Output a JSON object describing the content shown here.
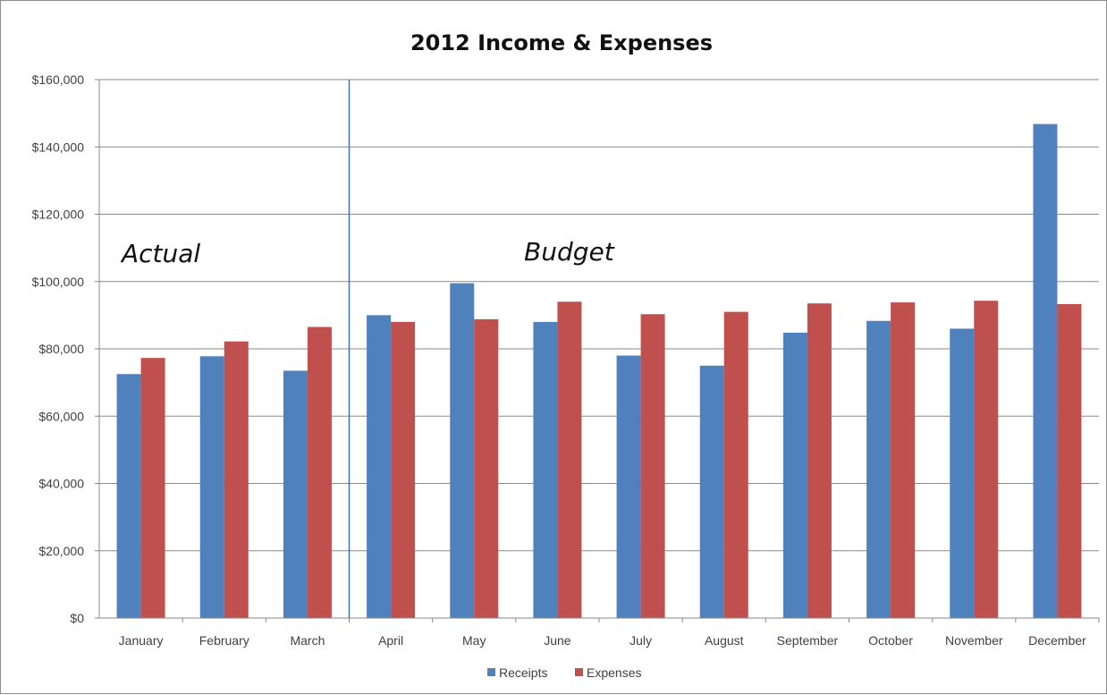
{
  "chart_data": {
    "type": "bar",
    "title": "2012 Income & Expenses",
    "categories": [
      "January",
      "February",
      "March",
      "April",
      "May",
      "June",
      "July",
      "August",
      "September",
      "October",
      "November",
      "December"
    ],
    "series": [
      {
        "name": "Receipts",
        "color": "#4f81bd",
        "values": [
          72500,
          77800,
          73500,
          90000,
          99500,
          88000,
          78000,
          75000,
          84800,
          88300,
          86000,
          146800
        ]
      },
      {
        "name": "Expenses",
        "color": "#c0504d",
        "values": [
          77300,
          82200,
          86500,
          88000,
          88800,
          94000,
          90300,
          91000,
          93500,
          93800,
          94300,
          93300
        ]
      }
    ],
    "ylim": [
      0,
      160000
    ],
    "yticks": [
      0,
      20000,
      40000,
      60000,
      80000,
      100000,
      120000,
      140000,
      160000
    ],
    "ytick_labels": [
      "$0",
      "$20,000",
      "$40,000",
      "$60,000",
      "$80,000",
      "$100,000",
      "$120,000",
      "$140,000",
      "$160,000"
    ],
    "xlabel": "",
    "ylabel": "",
    "grid": true,
    "legend_position": "bottom",
    "annotations": [
      {
        "text": "Actual"
      },
      {
        "text": "Budget"
      }
    ],
    "divider_between": [
      "March",
      "April"
    ]
  }
}
